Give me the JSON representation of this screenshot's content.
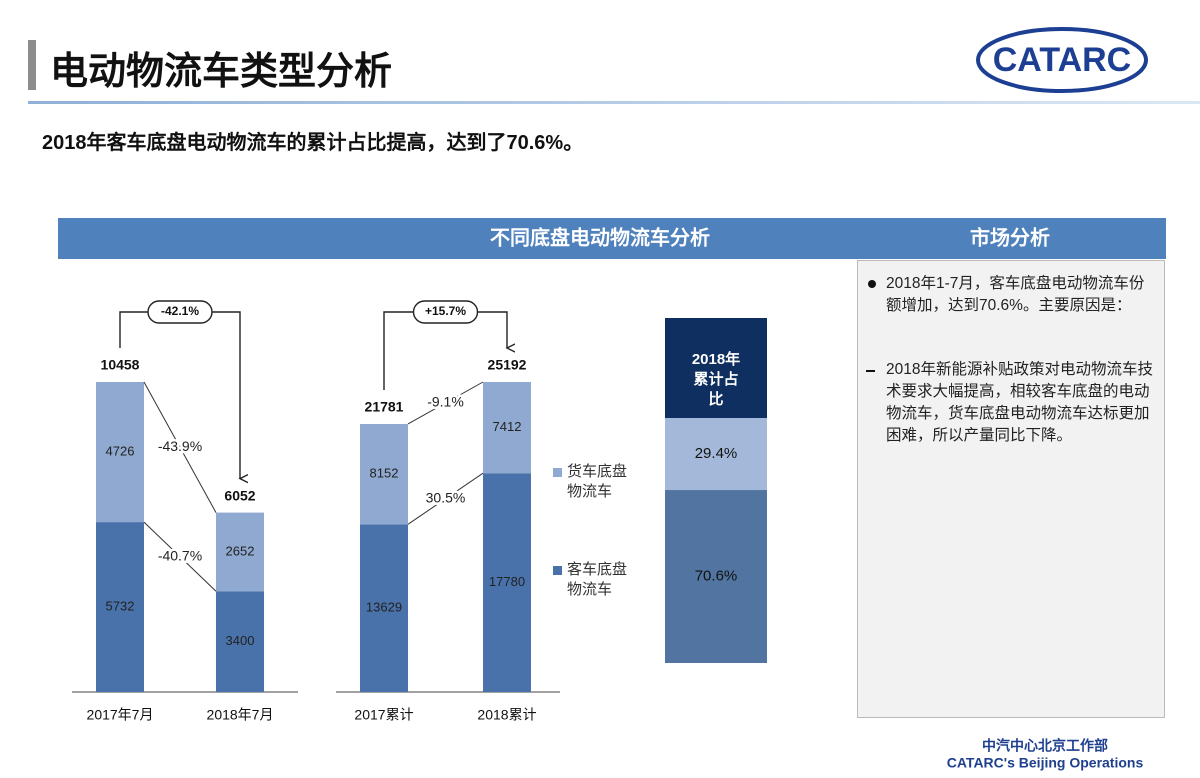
{
  "header": {
    "title": "电动物流车类型分析",
    "logo": "CATARC"
  },
  "subtitle": "2018年客车底盘电动物流车的累计占比提高，达到了70.6%。",
  "panel_title": "不同底盘电动物流车分析",
  "side_panel": {
    "title": "市场分析",
    "bullets": [
      "2018年1-7月，客车底盘电动物流车份额增加，达到70.6%。主要原因是：",
      "2018年新能源补贴政策对电动物流车技术要求大幅提高，相较客车底盘的电动物流车，货车底盘电动物流车达标更加困难，所以产量同比下降。"
    ]
  },
  "footer": {
    "org": "中汽中心北京工作部",
    "org_en": "CATARC's Beijing Operations"
  },
  "chart_data": [
    {
      "type": "stacked_bar",
      "categories": [
        "2017年7月",
        "2018年7月"
      ],
      "series": [
        {
          "color": "#4a72aa",
          "values": [
            5732,
            3400
          ],
          "change": "-40.7%"
        },
        {
          "color": "#8fa9d0",
          "values": [
            4726,
            2652
          ],
          "change": "-43.9%"
        }
      ],
      "totals": [
        10458,
        6052
      ],
      "total_change": "-42.1%"
    },
    {
      "type": "stacked_bar",
      "categories": [
        "2017累计",
        "2018累计"
      ],
      "series": [
        {
          "name": "客车底盘物流车",
          "color": "#4a72aa",
          "values": [
            13629,
            17780
          ],
          "change": "30.5%"
        },
        {
          "name": "货车底盘物流车",
          "color": "#8fa9d0",
          "values": [
            8152,
            7412
          ],
          "change": "-9.1%"
        }
      ],
      "totals": [
        21781,
        25192
      ],
      "total_change": "+15.7%"
    },
    {
      "type": "share_bar",
      "title": "2018年累计占比",
      "title_color": "#0e2f5f",
      "series": [
        {
          "color": "#5174a0",
          "values": [
            70.6
          ],
          "value_labels": [
            "70.6%"
          ]
        },
        {
          "color": "#a4b9d9",
          "values": [
            29.4
          ],
          "value_labels": [
            "29.4%"
          ]
        }
      ]
    }
  ]
}
